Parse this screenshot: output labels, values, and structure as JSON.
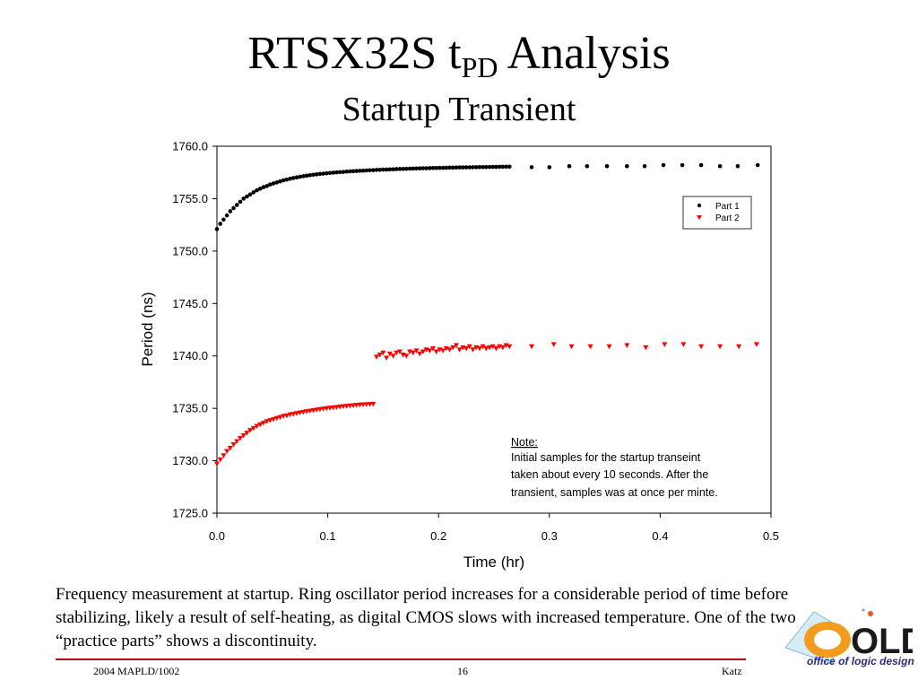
{
  "slide": {
    "title_main": "RTSX32S t",
    "title_sub": "PD",
    "title_rest": " Analysis",
    "subtitle": "Startup Transient",
    "caption": "Frequency measurement at startup.  Ring oscillator period increases for a considerable period of time before stabilizing, likely a result of self-heating, as digital CMOS slows with increased temperature.  One of the two “practice parts” shows a discontinuity.",
    "footer_left": "2004 MAPLD/1002",
    "footer_center": "16",
    "footer_right": "Katz",
    "logo": {
      "text": "office of logic design",
      "mark": "OLD"
    }
  },
  "chart_data": {
    "type": "scatter",
    "title": "",
    "xlabel": "Time (hr)",
    "ylabel": "Period (ns)",
    "xlim": [
      0.0,
      0.5
    ],
    "ylim": [
      1725.0,
      1760.0
    ],
    "xticks": [
      "0.0",
      "0.1",
      "0.2",
      "0.3",
      "0.4",
      "0.5"
    ],
    "yticks": [
      "1725.0",
      "1730.0",
      "1735.0",
      "1740.0",
      "1745.0",
      "1750.0",
      "1755.0",
      "1760.0"
    ],
    "grid": false,
    "legend_position": "top-right",
    "note": {
      "heading": "Note:",
      "lines": [
        "Initial samples for the startup transeint",
        "taken about every 10 seconds.  After the",
        "transient, samples was at once per minte."
      ]
    },
    "series": [
      {
        "name": "Part 1",
        "marker": "circle",
        "color": "#000000",
        "points": [
          [
            0.0,
            1752.1
          ],
          [
            0.003,
            1752.6
          ],
          [
            0.006,
            1753.0
          ],
          [
            0.009,
            1753.4
          ],
          [
            0.012,
            1753.8
          ],
          [
            0.015,
            1754.1
          ],
          [
            0.018,
            1754.4
          ],
          [
            0.021,
            1754.7
          ],
          [
            0.024,
            1755.0
          ],
          [
            0.027,
            1755.2
          ],
          [
            0.03,
            1755.4
          ],
          [
            0.033,
            1755.6
          ],
          [
            0.036,
            1755.8
          ],
          [
            0.039,
            1755.95
          ],
          [
            0.042,
            1756.1
          ],
          [
            0.045,
            1756.2
          ],
          [
            0.048,
            1756.35
          ],
          [
            0.051,
            1756.45
          ],
          [
            0.054,
            1756.55
          ],
          [
            0.057,
            1756.65
          ],
          [
            0.06,
            1756.75
          ],
          [
            0.063,
            1756.82
          ],
          [
            0.066,
            1756.9
          ],
          [
            0.069,
            1756.97
          ],
          [
            0.072,
            1757.03
          ],
          [
            0.075,
            1757.09
          ],
          [
            0.078,
            1757.14
          ],
          [
            0.081,
            1757.19
          ],
          [
            0.084,
            1757.24
          ],
          [
            0.087,
            1757.28
          ],
          [
            0.09,
            1757.32
          ],
          [
            0.093,
            1757.36
          ],
          [
            0.096,
            1757.39
          ],
          [
            0.099,
            1757.42
          ],
          [
            0.102,
            1757.45
          ],
          [
            0.105,
            1757.48
          ],
          [
            0.108,
            1757.51
          ],
          [
            0.111,
            1757.53
          ],
          [
            0.114,
            1757.55
          ],
          [
            0.117,
            1757.58
          ],
          [
            0.12,
            1757.6
          ],
          [
            0.123,
            1757.62
          ],
          [
            0.126,
            1757.64
          ],
          [
            0.129,
            1757.66
          ],
          [
            0.132,
            1757.67
          ],
          [
            0.135,
            1757.69
          ],
          [
            0.138,
            1757.71
          ],
          [
            0.141,
            1757.72
          ],
          [
            0.144,
            1757.74
          ],
          [
            0.147,
            1757.75
          ],
          [
            0.15,
            1757.77
          ],
          [
            0.153,
            1757.78
          ],
          [
            0.156,
            1757.79
          ],
          [
            0.159,
            1757.8
          ],
          [
            0.162,
            1757.82
          ],
          [
            0.165,
            1757.83
          ],
          [
            0.168,
            1757.84
          ],
          [
            0.171,
            1757.85
          ],
          [
            0.174,
            1757.86
          ],
          [
            0.177,
            1757.87
          ],
          [
            0.18,
            1757.88
          ],
          [
            0.183,
            1757.89
          ],
          [
            0.186,
            1757.9
          ],
          [
            0.189,
            1757.9
          ],
          [
            0.192,
            1757.91
          ],
          [
            0.195,
            1757.92
          ],
          [
            0.198,
            1757.93
          ],
          [
            0.201,
            1757.94
          ],
          [
            0.204,
            1757.94
          ],
          [
            0.207,
            1757.95
          ],
          [
            0.21,
            1757.96
          ],
          [
            0.213,
            1757.96
          ],
          [
            0.216,
            1757.97
          ],
          [
            0.219,
            1757.98
          ],
          [
            0.222,
            1757.98
          ],
          [
            0.225,
            1757.99
          ],
          [
            0.228,
            1757.99
          ],
          [
            0.231,
            1758.0
          ],
          [
            0.234,
            1758.0
          ],
          [
            0.237,
            1758.01
          ],
          [
            0.24,
            1758.01
          ],
          [
            0.243,
            1758.02
          ],
          [
            0.246,
            1758.02
          ],
          [
            0.249,
            1758.03
          ],
          [
            0.252,
            1758.03
          ],
          [
            0.255,
            1758.04
          ],
          [
            0.258,
            1758.04
          ],
          [
            0.261,
            1758.05
          ],
          [
            0.264,
            1758.05
          ],
          [
            0.284,
            1758.0
          ],
          [
            0.3,
            1758.0
          ],
          [
            0.318,
            1758.1
          ],
          [
            0.334,
            1758.1
          ],
          [
            0.352,
            1758.1
          ],
          [
            0.37,
            1758.1
          ],
          [
            0.386,
            1758.1
          ],
          [
            0.403,
            1758.2
          ],
          [
            0.42,
            1758.2
          ],
          [
            0.437,
            1758.2
          ],
          [
            0.454,
            1758.1
          ],
          [
            0.47,
            1758.1
          ],
          [
            0.488,
            1758.2
          ]
        ]
      },
      {
        "name": "Part 2",
        "marker": "triangle-down",
        "color": "#ff0000",
        "points": [
          [
            0.0,
            1729.7
          ],
          [
            0.003,
            1730.1
          ],
          [
            0.006,
            1730.5
          ],
          [
            0.009,
            1730.9
          ],
          [
            0.012,
            1731.2
          ],
          [
            0.015,
            1731.55
          ],
          [
            0.018,
            1731.85
          ],
          [
            0.021,
            1732.15
          ],
          [
            0.024,
            1732.4
          ],
          [
            0.027,
            1732.65
          ],
          [
            0.03,
            1732.9
          ],
          [
            0.033,
            1733.1
          ],
          [
            0.036,
            1733.3
          ],
          [
            0.039,
            1733.45
          ],
          [
            0.042,
            1733.6
          ],
          [
            0.045,
            1733.75
          ],
          [
            0.048,
            1733.85
          ],
          [
            0.051,
            1733.95
          ],
          [
            0.054,
            1734.05
          ],
          [
            0.057,
            1734.15
          ],
          [
            0.06,
            1734.25
          ],
          [
            0.063,
            1734.3
          ],
          [
            0.066,
            1734.4
          ],
          [
            0.069,
            1734.45
          ],
          [
            0.072,
            1734.52
          ],
          [
            0.075,
            1734.58
          ],
          [
            0.078,
            1734.64
          ],
          [
            0.081,
            1734.7
          ],
          [
            0.084,
            1734.75
          ],
          [
            0.087,
            1734.8
          ],
          [
            0.09,
            1734.85
          ],
          [
            0.093,
            1734.9
          ],
          [
            0.096,
            1734.95
          ],
          [
            0.099,
            1734.99
          ],
          [
            0.102,
            1735.03
          ],
          [
            0.105,
            1735.07
          ],
          [
            0.108,
            1735.1
          ],
          [
            0.111,
            1735.14
          ],
          [
            0.114,
            1735.18
          ],
          [
            0.117,
            1735.21
          ],
          [
            0.12,
            1735.24
          ],
          [
            0.123,
            1735.27
          ],
          [
            0.126,
            1735.3
          ],
          [
            0.129,
            1735.33
          ],
          [
            0.132,
            1735.35
          ],
          [
            0.135,
            1735.37
          ],
          [
            0.138,
            1735.39
          ],
          [
            0.141,
            1735.41
          ],
          [
            0.144,
            1739.9
          ],
          [
            0.147,
            1740.1
          ],
          [
            0.15,
            1740.3
          ],
          [
            0.153,
            1739.8
          ],
          [
            0.156,
            1740.2
          ],
          [
            0.159,
            1740.0
          ],
          [
            0.162,
            1740.3
          ],
          [
            0.165,
            1740.4
          ],
          [
            0.168,
            1740.1
          ],
          [
            0.171,
            1740.0
          ],
          [
            0.174,
            1740.4
          ],
          [
            0.177,
            1740.3
          ],
          [
            0.18,
            1740.5
          ],
          [
            0.183,
            1740.2
          ],
          [
            0.186,
            1740.4
          ],
          [
            0.189,
            1740.6
          ],
          [
            0.192,
            1740.5
          ],
          [
            0.195,
            1740.7
          ],
          [
            0.198,
            1740.4
          ],
          [
            0.201,
            1740.6
          ],
          [
            0.204,
            1740.5
          ],
          [
            0.207,
            1740.7
          ],
          [
            0.21,
            1740.6
          ],
          [
            0.213,
            1740.8
          ],
          [
            0.216,
            1741.0
          ],
          [
            0.219,
            1740.6
          ],
          [
            0.222,
            1740.8
          ],
          [
            0.225,
            1740.7
          ],
          [
            0.228,
            1740.9
          ],
          [
            0.231,
            1740.6
          ],
          [
            0.234,
            1740.8
          ],
          [
            0.237,
            1740.7
          ],
          [
            0.24,
            1740.9
          ],
          [
            0.243,
            1740.7
          ],
          [
            0.246,
            1740.8
          ],
          [
            0.249,
            1740.9
          ],
          [
            0.252,
            1740.7
          ],
          [
            0.255,
            1740.9
          ],
          [
            0.258,
            1740.8
          ],
          [
            0.261,
            1741.0
          ],
          [
            0.264,
            1740.9
          ],
          [
            0.284,
            1740.9
          ],
          [
            0.304,
            1741.1
          ],
          [
            0.32,
            1740.9
          ],
          [
            0.337,
            1740.9
          ],
          [
            0.354,
            1740.9
          ],
          [
            0.37,
            1741.0
          ],
          [
            0.387,
            1740.8
          ],
          [
            0.404,
            1741.1
          ],
          [
            0.421,
            1741.1
          ],
          [
            0.437,
            1740.9
          ],
          [
            0.454,
            1740.9
          ],
          [
            0.471,
            1740.9
          ],
          [
            0.487,
            1741.1
          ]
        ]
      }
    ]
  }
}
